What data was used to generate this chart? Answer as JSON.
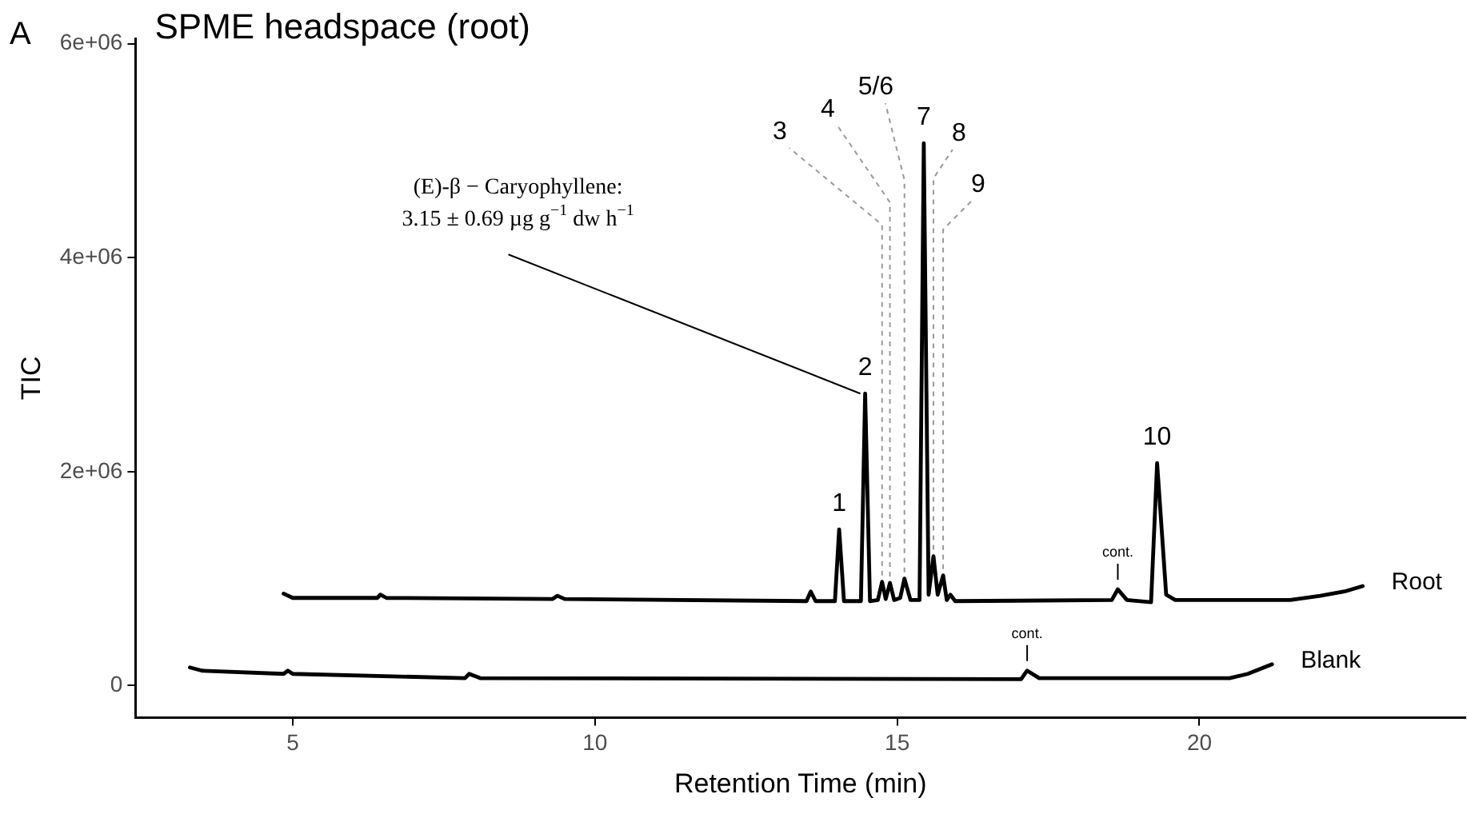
{
  "chart_data": {
    "type": "line",
    "title": "SPME headspace (root)",
    "xlabel": "Retention Time (min)",
    "ylabel": "TIC",
    "xlim": [
      2.4,
      24.4
    ],
    "ylim": [
      -300000,
      6050000
    ],
    "xticks": [
      5,
      10,
      15,
      20
    ],
    "yticks": [
      0,
      {
        "value": 2000000,
        "label": "2e+06"
      },
      {
        "value": 4000000,
        "label": "4e+06"
      },
      {
        "value": 6000000,
        "label": "6e+06"
      }
    ],
    "grid": false,
    "legend": false,
    "marker": "none",
    "line_style": "solid",
    "series": [
      {
        "name": "Root",
        "color": "#000000",
        "x": [
          4.85,
          5.0,
          6.4,
          6.45,
          6.55,
          9.3,
          9.38,
          9.5,
          13.5,
          13.57,
          13.65,
          13.97,
          14.04,
          14.12,
          14.4,
          14.47,
          14.55,
          14.68,
          14.75,
          14.81,
          14.88,
          14.95,
          15.05,
          15.12,
          15.22,
          15.37,
          15.44,
          15.52,
          15.6,
          15.67,
          15.76,
          15.82,
          15.88,
          15.96,
          18.55,
          18.65,
          18.8,
          19.2,
          19.3,
          19.45,
          19.6,
          21.5,
          22.0,
          22.4,
          22.7
        ],
        "values": [
          860000,
          820000,
          820000,
          850000,
          820000,
          810000,
          840000,
          810000,
          790000,
          880000,
          790000,
          790000,
          1460000,
          790000,
          790000,
          2730000,
          790000,
          800000,
          970000,
          810000,
          960000,
          800000,
          820000,
          1000000,
          800000,
          800000,
          5070000,
          850000,
          1210000,
          850000,
          1030000,
          800000,
          850000,
          790000,
          800000,
          900000,
          800000,
          780000,
          2080000,
          850000,
          800000,
          800000,
          840000,
          880000,
          930000
        ]
      },
      {
        "name": "Blank",
        "color": "#000000",
        "x": [
          3.3,
          3.5,
          4.85,
          4.92,
          5.0,
          7.85,
          7.92,
          8.1,
          17.05,
          17.15,
          17.35,
          20.5,
          20.8,
          21.2
        ],
        "values": [
          170000,
          140000,
          110000,
          140000,
          110000,
          70000,
          110000,
          70000,
          60000,
          140000,
          70000,
          70000,
          110000,
          200000
        ]
      }
    ],
    "annotations": [
      "A",
      {
        "text": "(E)-β − Caryophyllene: 3.15 ± 0.69 µg g$^{−1}$ dw h$^{−1}$",
        "x": 14.47,
        "y": 2730000
      },
      {
        "text": "1",
        "x": 14.04,
        "y": 1460000
      },
      {
        "text": "2",
        "x": 14.47,
        "y": 2730000
      },
      {
        "text": "3",
        "x": 14.75,
        "y": 970000
      },
      {
        "text": "4",
        "x": 14.88,
        "y": 960000
      },
      {
        "text": "5/6",
        "x": 15.12,
        "y": 1000000
      },
      {
        "text": "7",
        "x": 15.44,
        "y": 5070000
      },
      {
        "text": "8",
        "x": 15.6,
        "y": 1210000
      },
      {
        "text": "9",
        "x": 15.76,
        "y": 1030000
      },
      {
        "text": "10",
        "x": 19.3,
        "y": 2080000
      },
      {
        "text": "cont.",
        "x": 18.65,
        "y": 900000
      },
      {
        "text": "cont.",
        "x": 17.15,
        "y": 140000
      }
    ]
  }
}
